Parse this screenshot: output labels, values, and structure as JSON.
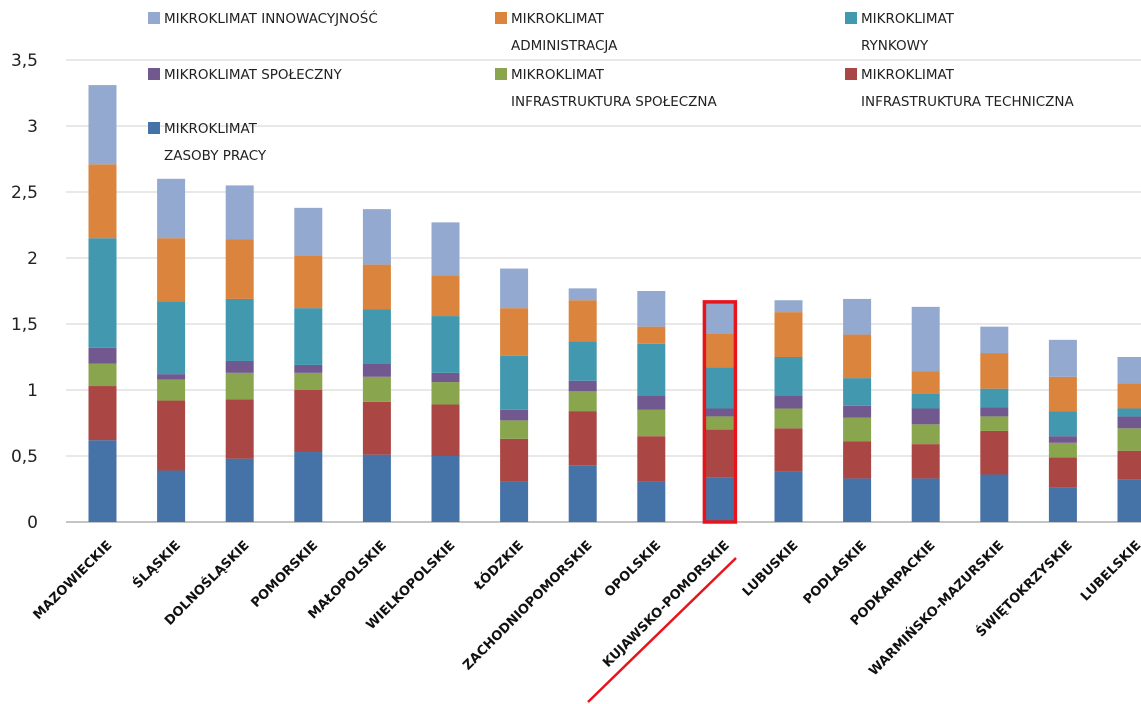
{
  "chart_data": {
    "type": "bar",
    "stacked": true,
    "ylim": [
      0,
      3.5
    ],
    "yticks": [
      "0",
      "0,5",
      "1",
      "1,5",
      "2",
      "2,5",
      "3",
      "3,5"
    ],
    "grid": true,
    "legend_position": "top",
    "categories": [
      "MAZOWIECKIE",
      "ŚLĄSKIE",
      "DOLNOŚLĄSKIE",
      "POMORSKIE",
      "MAŁOPOLSKIE",
      "WIELKOPOLSKIE",
      "ŁÓDZKIE",
      "ZACHODNIOPOMORSKIE",
      "OPOLSKIE",
      "KUJAWSKO-POMORSKIE",
      "LUBUSKIE",
      "PODLASKIE",
      "PODKARPACKIE",
      "WARMIŃSKO-MAZURSKIE",
      "ŚWIĘTOKRZYSKIE",
      "LUBELSKIE"
    ],
    "highlighted_category": "KUJAWSKO-POMORSKIE",
    "series": [
      {
        "name": "MIKROKLIMAT ZASOBY PRACY",
        "color": "#4572a7",
        "values": [
          0.62,
          0.39,
          0.48,
          0.53,
          0.51,
          0.5,
          0.31,
          0.43,
          0.31,
          0.34,
          0.38,
          0.33,
          0.33,
          0.36,
          0.26,
          0.32
        ]
      },
      {
        "name": "MIKROKLIMAT INFRASTRUKTURA TECHNICZNA",
        "color": "#aa4643",
        "values": [
          0.41,
          0.53,
          0.45,
          0.47,
          0.4,
          0.39,
          0.32,
          0.41,
          0.34,
          0.36,
          0.33,
          0.28,
          0.26,
          0.33,
          0.23,
          0.22
        ]
      },
      {
        "name": "MIKROKLIMAT INFRASTRUKTURA SPOŁECZNA",
        "color": "#89a54e",
        "values": [
          0.17,
          0.16,
          0.2,
          0.13,
          0.19,
          0.17,
          0.14,
          0.15,
          0.2,
          0.1,
          0.15,
          0.18,
          0.15,
          0.11,
          0.11,
          0.17
        ]
      },
      {
        "name": "MIKROKLIMAT SPOŁECZNY",
        "color": "#71588f",
        "values": [
          0.12,
          0.04,
          0.09,
          0.06,
          0.1,
          0.07,
          0.08,
          0.08,
          0.11,
          0.06,
          0.1,
          0.09,
          0.12,
          0.07,
          0.05,
          0.09
        ]
      },
      {
        "name": "MIKROKLIMAT RYNKOWY",
        "color": "#4198af",
        "values": [
          0.83,
          0.55,
          0.47,
          0.43,
          0.41,
          0.43,
          0.41,
          0.3,
          0.39,
          0.31,
          0.29,
          0.21,
          0.11,
          0.14,
          0.19,
          0.06
        ]
      },
      {
        "name": "MIKROKLIMAT ADMINISTRACJA",
        "color": "#db843d",
        "values": [
          0.56,
          0.48,
          0.45,
          0.4,
          0.34,
          0.31,
          0.36,
          0.31,
          0.13,
          0.26,
          0.34,
          0.33,
          0.17,
          0.27,
          0.26,
          0.19
        ]
      },
      {
        "name": "MIKROKLIMAT INNOWACYJNOŚĆ",
        "color": "#93a9cf",
        "values": [
          0.6,
          0.45,
          0.41,
          0.36,
          0.42,
          0.4,
          0.3,
          0.09,
          0.27,
          0.23,
          0.09,
          0.27,
          0.49,
          0.2,
          0.28,
          0.2
        ]
      }
    ]
  },
  "legend": [
    {
      "lines": [
        "MIKROKLIMAT INNOWACYJNOŚĆ"
      ],
      "color": "#93a9cf"
    },
    {
      "lines": [
        "MIKROKLIMAT",
        "ADMINISTRACJA"
      ],
      "color": "#db843d"
    },
    {
      "lines": [
        "MIKROKLIMAT",
        "RYNKOWY"
      ],
      "color": "#4198af"
    },
    {
      "lines": [
        "MIKROKLIMAT SPOŁECZNY"
      ],
      "color": "#71588f"
    },
    {
      "lines": [
        "MIKROKLIMAT",
        "INFRASTRUKTURA SPOŁECZNA"
      ],
      "color": "#89a54e"
    },
    {
      "lines": [
        "MIKROKLIMAT",
        "INFRASTRUKTURA TECHNICZNA"
      ],
      "color": "#aa4643"
    },
    {
      "lines": [
        "MIKROKLIMAT",
        "ZASOBY PRACY"
      ],
      "color": "#4572a7"
    }
  ],
  "highlight_color": "#e8141c"
}
